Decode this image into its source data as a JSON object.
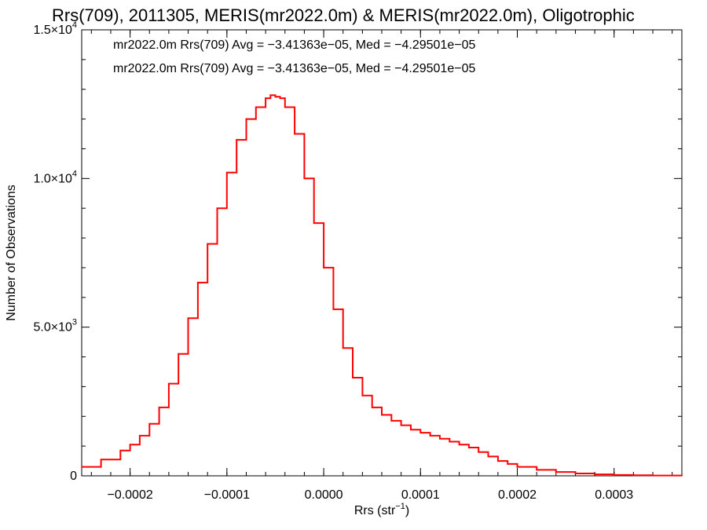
{
  "chart_data": {
    "type": "line",
    "title": "Rrs(709), 2011305, MERIS(mr2022.0m) & MERIS(mr2022.0m), Oligotrophic",
    "xlabel": "Rrs (str⁻¹)",
    "ylabel": "Number of Observations",
    "xlim": [
      -0.00025,
      0.00037
    ],
    "ylim": [
      0,
      15000
    ],
    "x_ticks": [
      {
        "value": -0.0002,
        "label": "−0.0002"
      },
      {
        "value": -0.0001,
        "label": "−0.0001"
      },
      {
        "value": 0.0,
        "label": "0.0000"
      },
      {
        "value": 0.0001,
        "label": "0.0001"
      },
      {
        "value": 0.0002,
        "label": "0.0002"
      },
      {
        "value": 0.0003,
        "label": "0.0003"
      }
    ],
    "y_ticks": [
      {
        "value": 0,
        "mantissa": "0",
        "exp": ""
      },
      {
        "value": 5000,
        "mantissa": "5.0×10",
        "exp": "3"
      },
      {
        "value": 10000,
        "mantissa": "1.0×10",
        "exp": "4"
      },
      {
        "value": 15000,
        "mantissa": "1.5×10",
        "exp": "4"
      }
    ],
    "grid": false,
    "legend_position": "top-left",
    "annotations": [
      {
        "text": "mr2022.0m Rrs(709) Avg = −3.41363e−05, Med = −4.29501e−05",
        "color": "#000000"
      },
      {
        "text": "mr2022.0m Rrs(709) Avg = −3.41363e−05, Med = −4.29501e−05",
        "color": "#ff0000"
      }
    ],
    "series": [
      {
        "color": "#ff0000",
        "style": "histogram-step",
        "x": [
          -0.00025,
          -0.00023,
          -0.00021,
          -0.0002,
          -0.00019,
          -0.00018,
          -0.00017,
          -0.00016,
          -0.00015,
          -0.00014,
          -0.00013,
          -0.00012,
          -0.00011,
          -0.0001,
          -9e-05,
          -8e-05,
          -7e-05,
          -6e-05,
          -5.5e-05,
          -5e-05,
          -4.5e-05,
          -4e-05,
          -3e-05,
          -2e-05,
          -1e-05,
          0.0,
          1e-05,
          2e-05,
          3e-05,
          4e-05,
          5e-05,
          6e-05,
          7e-05,
          8e-05,
          9e-05,
          0.0001,
          0.00011,
          0.00012,
          0.00013,
          0.00014,
          0.00015,
          0.00016,
          0.00017,
          0.00018,
          0.00019,
          0.0002,
          0.00022,
          0.00024,
          0.00026,
          0.00028,
          0.0003,
          0.00032,
          0.00034,
          0.00037
        ],
        "values": [
          300,
          550,
          850,
          1050,
          1350,
          1750,
          2300,
          3100,
          4100,
          5300,
          6500,
          7800,
          9000,
          10200,
          11300,
          12000,
          12400,
          12700,
          12800,
          12750,
          12700,
          12400,
          11500,
          10000,
          8500,
          7000,
          5600,
          4300,
          3300,
          2700,
          2300,
          2050,
          1850,
          1700,
          1550,
          1450,
          1350,
          1250,
          1150,
          1050,
          950,
          800,
          650,
          500,
          400,
          300,
          200,
          130,
          80,
          50,
          30,
          20,
          10,
          5
        ]
      }
    ]
  }
}
